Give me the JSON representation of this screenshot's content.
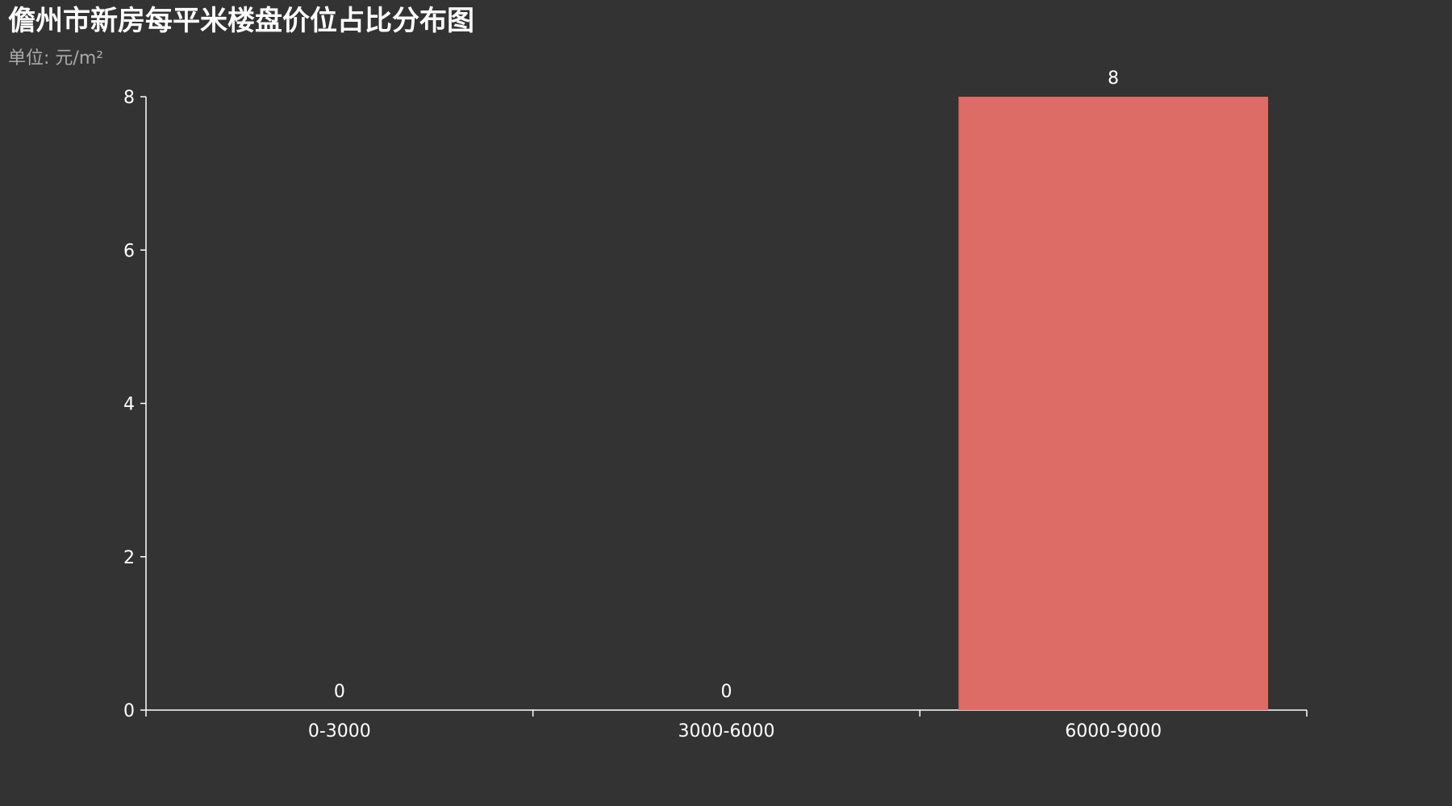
{
  "title": "儋州市新房每平米楼盘价位占比分布图",
  "subtitle": "单位: 元/m²",
  "colors": {
    "background": "#333333",
    "bar": "#dd6b66",
    "axis": "#ffffff",
    "text": "#ffffff",
    "subtitle": "#aaaaaa"
  },
  "chart_data": {
    "type": "bar",
    "title": "儋州市新房每平米楼盘价位占比分布图",
    "subtitle": "单位: 元/m²",
    "categories": [
      "0-3000",
      "3000-6000",
      "6000-9000"
    ],
    "series": [
      {
        "values": [
          0,
          0,
          8
        ]
      }
    ],
    "xlabel": "",
    "ylabel": "",
    "ylim": [
      0,
      8
    ],
    "yticks": [
      0,
      2,
      4,
      6,
      8
    ],
    "grid": false,
    "legend": "none"
  }
}
